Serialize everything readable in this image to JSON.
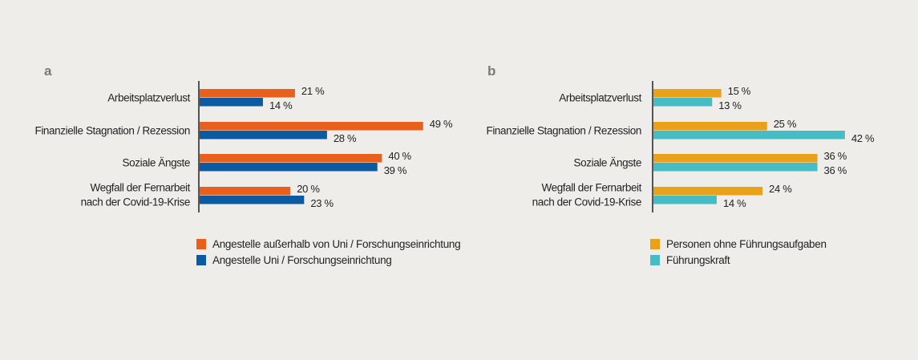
{
  "chart_data": [
    {
      "type": "bar",
      "panel_label": "a",
      "orientation": "horizontal",
      "categories": [
        [
          "Arbeitsplatzverlust"
        ],
        [
          "Finanzielle Stagnation / Rezession"
        ],
        [
          "Soziale Ängste"
        ],
        [
          "Wegfall der Fernarbeit",
          "nach der Covid-19-Krise"
        ]
      ],
      "series": [
        {
          "name": "Angestelle außerhalb von Uni / Forschungseinrichtung",
          "color": "#e8601c",
          "values": [
            21,
            49,
            40,
            20
          ],
          "labels": [
            "21 %",
            "49 %",
            "40 %",
            "20 %"
          ]
        },
        {
          "name": "Angestelle Uni / Forschungseinrichtung",
          "color": "#0b5aa2",
          "values": [
            14,
            28,
            39,
            23
          ],
          "labels": [
            "14 %",
            "28 %",
            "39 %",
            "23 %"
          ]
        }
      ],
      "xlim": [
        0,
        50
      ],
      "legend": "bottom"
    },
    {
      "type": "bar",
      "panel_label": "b",
      "orientation": "horizontal",
      "categories": [
        [
          "Arbeitsplatzverlust"
        ],
        [
          "Finanzielle Stagnation / Rezession"
        ],
        [
          "Soziale Ängste"
        ],
        [
          "Wegfall der Fernarbeit",
          "nach der Covid-19-Krise"
        ]
      ],
      "series": [
        {
          "name": "Personen ohne Führungsaufgaben",
          "color": "#e9a11a",
          "values": [
            15,
            25,
            36,
            24
          ],
          "labels": [
            "15 %",
            "25 %",
            "36 %",
            "24 %"
          ]
        },
        {
          "name": "Führungskraft",
          "color": "#46bcc5",
          "values": [
            13,
            42,
            36,
            14
          ],
          "labels": [
            "13 %",
            "42 %",
            "36 %",
            "14 %"
          ]
        }
      ],
      "xlim": [
        0,
        50
      ],
      "legend": "bottom"
    }
  ]
}
